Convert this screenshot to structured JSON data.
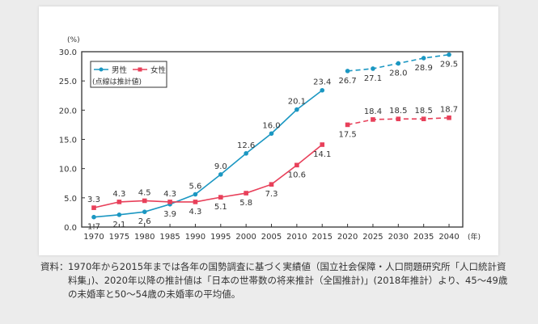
{
  "chart_data": {
    "type": "line",
    "yunit": "(%)",
    "xunit": "(年)",
    "categories": [
      "1970",
      "1975",
      "1980",
      "1985",
      "1990",
      "1995",
      "2000",
      "2005",
      "2010",
      "2015",
      "2020",
      "2025",
      "2030",
      "2035",
      "2040"
    ],
    "ylim": [
      0,
      30
    ],
    "yticks": [
      "0.0",
      "5.0",
      "10.0",
      "15.0",
      "20.0",
      "25.0",
      "30.0"
    ],
    "grid": false,
    "legend_position": "top-left",
    "legend_note": "(点線は推計値)",
    "projection_start": "2020",
    "series": [
      {
        "name": "男性",
        "color": "#1b97c2",
        "marker": "circle",
        "values": [
          1.7,
          2.1,
          2.6,
          3.9,
          5.6,
          9.0,
          12.6,
          16.0,
          20.1,
          23.4,
          26.7,
          27.1,
          28.0,
          28.9,
          29.5
        ],
        "labels": [
          "1.7",
          "2.1",
          "2.6",
          "3.9",
          "5.6",
          "9.0",
          "12.6",
          "16.0",
          "20.1",
          "23.4",
          "26.7",
          "27.1",
          "28.0",
          "28.9",
          "29.5"
        ]
      },
      {
        "name": "女性",
        "color": "#e8405a",
        "marker": "square",
        "values": [
          3.3,
          4.3,
          4.5,
          4.3,
          4.3,
          5.1,
          5.8,
          7.3,
          10.6,
          14.1,
          17.5,
          18.4,
          18.5,
          18.5,
          18.7
        ],
        "labels": [
          "3.3",
          "4.3",
          "4.5",
          "4.3",
          "4.3",
          "5.1",
          "5.8",
          "7.3",
          "10.6",
          "14.1",
          "17.5",
          "18.4",
          "18.5",
          "18.5",
          "18.7"
        ]
      }
    ]
  },
  "caption": {
    "label": "資料：",
    "text": "1970年から2015年までは各年の国勢調査に基づく実績値（国立社会保障・人口問題研究所「人口統計資料集」)、2020年以降の推計値は「日本の世帯数の将来推計（全国推計)」(2018年推計）より、45〜49歳の未婚率と50〜54歳の未婚率の平均値。"
  }
}
